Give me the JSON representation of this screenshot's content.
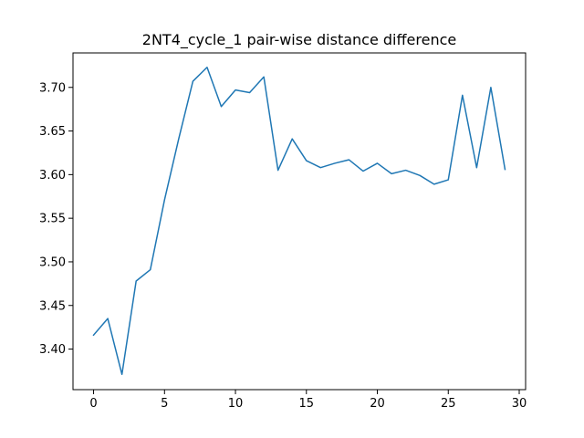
{
  "chart_data": {
    "type": "line",
    "title": "2NT4_cycle_1 pair-wise distance difference",
    "xlabel": "",
    "ylabel": "",
    "xlim": [
      -1.45,
      30.45
    ],
    "ylim": [
      3.3535,
      3.7395
    ],
    "x_ticks": [
      0,
      5,
      10,
      15,
      20,
      25,
      30
    ],
    "y_ticks": [
      3.4,
      3.45,
      3.5,
      3.55,
      3.6,
      3.65,
      3.7
    ],
    "x_tick_labels": [
      "0",
      "5",
      "10",
      "15",
      "20",
      "25",
      "30"
    ],
    "y_tick_labels": [
      "3.40",
      "3.45",
      "3.50",
      "3.55",
      "3.60",
      "3.65",
      "3.70"
    ],
    "grid": false,
    "series": [
      {
        "color": "#1f77b4",
        "x": [
          0,
          1,
          2,
          3,
          4,
          5,
          6,
          7,
          8,
          9,
          10,
          11,
          12,
          13,
          14,
          15,
          16,
          17,
          18,
          19,
          20,
          21,
          22,
          23,
          24,
          25,
          26,
          27,
          28,
          29
        ],
        "values": [
          3.416,
          3.435,
          3.371,
          3.478,
          3.491,
          3.571,
          3.641,
          3.707,
          3.723,
          3.678,
          3.697,
          3.694,
          3.712,
          3.605,
          3.641,
          3.616,
          3.608,
          3.613,
          3.617,
          3.604,
          3.613,
          3.601,
          3.605,
          3.599,
          3.589,
          3.594,
          3.691,
          3.608,
          3.7,
          3.606
        ]
      }
    ]
  }
}
